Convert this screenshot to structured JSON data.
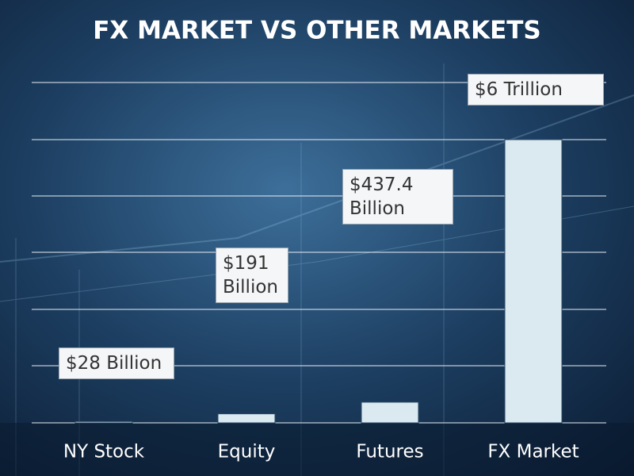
{
  "chart_data": {
    "type": "bar",
    "title": "FX MARKET VS OTHER MARKETS",
    "categories": [
      "NY Stock",
      "Equity",
      "Futures",
      "FX Market"
    ],
    "values": [
      28,
      191,
      437.4,
      6000
    ],
    "value_labels": [
      "$28 Billion",
      "$191 Billion",
      "$437.4 Billion",
      "$6 Trillion"
    ],
    "color": "#dbe9f1",
    "grid": true
  }
}
